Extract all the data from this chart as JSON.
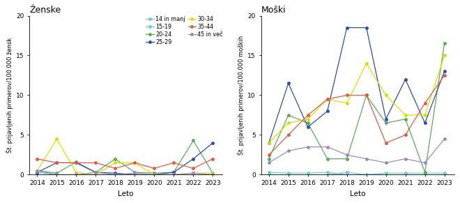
{
  "years": [
    2014,
    2015,
    2016,
    2017,
    2018,
    2019,
    2020,
    2021,
    2022,
    2023
  ],
  "zenske": {
    "14 in manj": [
      0.3,
      0.0,
      0.0,
      0.0,
      0.0,
      0.0,
      0.0,
      0.0,
      0.0,
      0.0
    ],
    "15-19": [
      0.0,
      0.0,
      0.0,
      0.0,
      0.0,
      0.0,
      0.0,
      0.0,
      0.0,
      0.0
    ],
    "20-24": [
      0.5,
      0.2,
      1.6,
      0.3,
      2.0,
      0.3,
      0.2,
      0.3,
      4.3,
      0.2
    ],
    "25-29": [
      0.3,
      1.5,
      1.5,
      0.3,
      0.2,
      0.0,
      0.0,
      0.3,
      2.0,
      4.0
    ],
    "30-34": [
      0.5,
      4.5,
      0.3,
      0.0,
      1.5,
      1.5,
      0.0,
      0.0,
      0.2,
      0.2
    ],
    "35-44": [
      2.0,
      1.5,
      1.5,
      1.5,
      0.8,
      1.5,
      0.8,
      1.5,
      0.8,
      2.0
    ],
    "45 in vec": [
      0.5,
      0.0,
      0.0,
      0.3,
      0.0,
      0.2,
      0.0,
      0.0,
      0.2,
      0.0
    ]
  },
  "moski": {
    "14 in manj": [
      0.0,
      0.0,
      0.0,
      0.0,
      0.3,
      0.0,
      0.0,
      0.0,
      0.0,
      0.0
    ],
    "15-19": [
      0.3,
      0.2,
      0.2,
      0.3,
      0.0,
      0.0,
      0.2,
      0.2,
      0.2,
      0.2
    ],
    "20-24": [
      2.0,
      7.5,
      6.5,
      2.0,
      2.0,
      10.0,
      6.5,
      7.0,
      0.3,
      16.5
    ],
    "25-29": [
      4.0,
      11.5,
      6.0,
      8.0,
      18.5,
      18.5,
      7.0,
      12.0,
      6.5,
      13.0
    ],
    "30-34": [
      4.0,
      6.5,
      7.0,
      9.5,
      9.0,
      14.0,
      10.0,
      7.5,
      7.5,
      15.0
    ],
    "35-44": [
      2.5,
      5.0,
      7.5,
      9.5,
      10.0,
      10.0,
      4.0,
      5.0,
      9.0,
      12.5
    ],
    "45 in vec": [
      1.5,
      3.0,
      3.5,
      3.5,
      2.5,
      2.0,
      1.5,
      2.0,
      1.5,
      4.5
    ]
  },
  "colors": {
    "14 in manj": "#7bbcdc",
    "15-19": "#6dcfbf",
    "20-24": "#5aaa5a",
    "25-29": "#2b4fa0",
    "30-34": "#d4e000",
    "35-44": "#e05a48",
    "45 in vec": "#9b8bbc"
  },
  "legend_col1": [
    "14 in manj",
    "20-24",
    "30-34",
    "45 in vec"
  ],
  "legend_col2": [
    "15-19",
    "25-29",
    "35-44"
  ],
  "legend_labels_display": {
    "14 in manj": "14 in manj",
    "15-19": "15-19",
    "20-24": "20-24",
    "25-29": "25-29",
    "30-34": "30-34",
    "35-44": "35-44",
    "45 in vec": "45 in več"
  },
  "title_zenske": "Ženske",
  "title_moski": "Moški",
  "ylabel_zenske": "Št. prijavljenih primerov/100.000 žensk",
  "ylabel_moski": "Št. prijavljenih primerov/100.000 moških",
  "xlabel": "Leto",
  "ylim": [
    0,
    20
  ],
  "yticks": [
    0,
    5,
    10,
    15,
    20
  ]
}
